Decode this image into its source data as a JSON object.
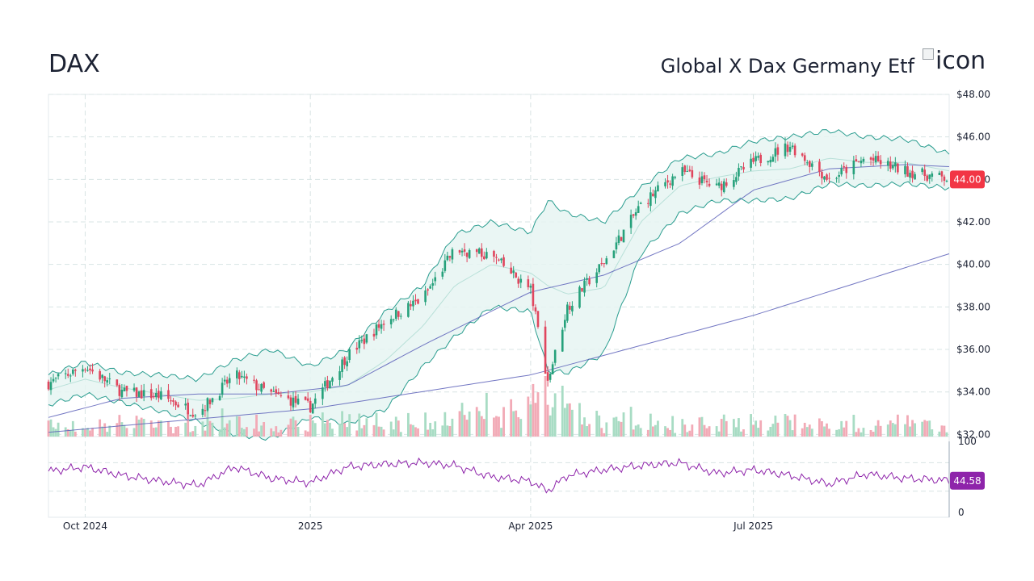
{
  "header": {
    "ticker": "DAX",
    "name": "Global X Dax Germany Etf",
    "logo_alt": "icon"
  },
  "chart_data": {
    "type": "candlestick",
    "title": "",
    "x_tick_labels": [
      "Oct 2024",
      "2025",
      "Apr 2025",
      "Jul 2025"
    ],
    "x_tick_dates": [
      "2024-10-01",
      "2025-01-01",
      "2025-04-01",
      "2025-07-01"
    ],
    "x_range": [
      "2024-09-16",
      "2025-09-19"
    ],
    "price_axis": {
      "ylim": [
        31.9,
        48.0
      ],
      "tick_labels": [
        "$48.00",
        "$46.00",
        "$44.00",
        "$42.00",
        "$40.00",
        "$38.00",
        "$36.00",
        "$34.00",
        "$32.00"
      ],
      "tick_values": [
        48,
        46,
        44,
        42,
        40,
        38,
        36,
        34,
        32
      ]
    },
    "last_price_label": "44.00",
    "last_price": 44.0,
    "price_series": {
      "x": [
        "2024-09-16",
        "2024-10-01",
        "2024-10-16",
        "2024-11-01",
        "2024-11-16",
        "2024-12-01",
        "2024-12-16",
        "2025-01-01",
        "2025-01-16",
        "2025-02-01",
        "2025-02-16",
        "2025-03-01",
        "2025-03-16",
        "2025-04-01",
        "2025-04-08",
        "2025-04-16",
        "2025-05-01",
        "2025-05-16",
        "2025-06-01",
        "2025-06-16",
        "2025-07-01",
        "2025-07-16",
        "2025-08-01",
        "2025-08-16",
        "2025-09-01",
        "2025-09-19"
      ],
      "close": [
        34.4,
        35.2,
        34.0,
        33.8,
        33.0,
        34.8,
        33.9,
        33.3,
        35.7,
        37.4,
        38.4,
        40.7,
        40.4,
        38.8,
        34.5,
        38.0,
        40.1,
        42.8,
        44.4,
        43.6,
        44.8,
        45.6,
        44.0,
        45.0,
        44.4,
        44.0
      ]
    },
    "bollinger": {
      "upper": [
        34.8,
        35.4,
        34.9,
        34.8,
        34.6,
        35.5,
        36.0,
        35.2,
        36.0,
        37.8,
        39.0,
        41.4,
        42.0,
        41.5,
        43.0,
        42.4,
        42.0,
        43.6,
        45.0,
        45.2,
        45.8,
        46.0,
        46.3,
        46.0,
        45.9,
        45.2
      ],
      "lower": [
        33.4,
        33.9,
        33.5,
        33.1,
        32.6,
        32.0,
        31.8,
        32.8,
        32.5,
        33.2,
        35.2,
        36.6,
        38.0,
        37.8,
        35.0,
        34.9,
        35.8,
        40.5,
        42.4,
        43.0,
        43.0,
        43.1,
        43.8,
        43.7,
        43.8,
        43.6
      ],
      "middle": [
        34.1,
        34.6,
        34.2,
        33.9,
        33.6,
        33.7,
        33.9,
        34.0,
        34.3,
        35.5,
        37.1,
        39.0,
        40.0,
        39.6,
        39.0,
        38.6,
        38.9,
        42.0,
        43.7,
        44.1,
        44.4,
        44.5,
        45.0,
        44.8,
        44.8,
        44.4
      ]
    },
    "moving_averages": [
      {
        "x": [
          "2024-09-16",
          "2024-10-16",
          "2024-11-16",
          "2024-12-16",
          "2025-01-16",
          "2025-02-16",
          "2025-03-16",
          "2025-04-01",
          "2025-05-01",
          "2025-06-01",
          "2025-07-01",
          "2025-08-01",
          "2025-09-01",
          "2025-09-19"
        ],
        "values": [
          32.8,
          33.7,
          33.9,
          33.9,
          34.3,
          36.2,
          37.8,
          38.7,
          39.5,
          41.0,
          43.5,
          44.5,
          44.7,
          44.6
        ]
      },
      {
        "x": [
          "2024-09-16",
          "2025-01-01",
          "2025-04-01",
          "2025-07-01",
          "2025-09-19"
        ],
        "values": [
          32.1,
          33.2,
          34.8,
          37.6,
          40.5
        ]
      }
    ],
    "volume": {
      "colors": {
        "up": "#a8dcc4",
        "down": "#f2aab6"
      }
    },
    "rsi": {
      "tick_labels": [
        "100",
        "0"
      ],
      "tick_values": [
        100,
        0
      ],
      "last_label": "44.58",
      "last_value": 44.58,
      "x": [
        "2024-09-16",
        "2024-10-01",
        "2024-10-16",
        "2024-11-01",
        "2024-11-16",
        "2024-12-01",
        "2024-12-16",
        "2025-01-01",
        "2025-01-16",
        "2025-02-01",
        "2025-02-16",
        "2025-03-01",
        "2025-03-16",
        "2025-04-01",
        "2025-04-08",
        "2025-04-16",
        "2025-05-01",
        "2025-05-16",
        "2025-06-01",
        "2025-06-16",
        "2025-07-01",
        "2025-07-16",
        "2025-08-01",
        "2025-08-16",
        "2025-09-01",
        "2025-09-19"
      ],
      "values": [
        58,
        64,
        52,
        44,
        38,
        64,
        48,
        42,
        64,
        68,
        70,
        66,
        50,
        44,
        30,
        52,
        60,
        66,
        70,
        55,
        60,
        52,
        40,
        54,
        48,
        45
      ]
    }
  },
  "colors": {
    "up": "#26a17b",
    "down": "#e0465e",
    "band_fill": "#e6f4f2",
    "band_line": "#2a9d8f",
    "ma_line": "#5b5fb8",
    "rsi_line": "#8e24aa",
    "price_badge": "#f23645",
    "rsi_badge": "#8e24aa",
    "grid": "#d8e4e4"
  }
}
